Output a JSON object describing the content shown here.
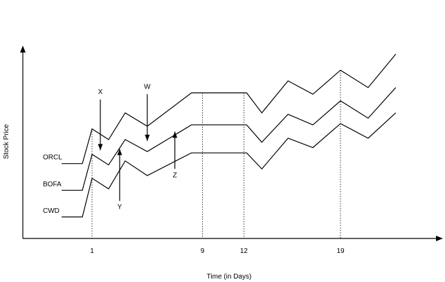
{
  "chart_data": {
    "type": "line",
    "xlabel": "Time (in Days)",
    "ylabel": "Stock Price",
    "x_ticks": [
      1,
      9,
      12,
      19
    ],
    "ylim": [
      0,
      100
    ],
    "series": [
      {
        "name": "ORCL",
        "points": [
          [
            -1.2,
            38
          ],
          [
            0.3,
            38
          ],
          [
            1.0,
            64
          ],
          [
            2.2,
            56
          ],
          [
            3.4,
            76
          ],
          [
            5.0,
            66
          ],
          [
            8.2,
            91
          ],
          [
            9.2,
            91
          ],
          [
            12.2,
            91
          ],
          [
            13.3,
            76
          ],
          [
            15.2,
            100
          ],
          [
            17.0,
            90
          ],
          [
            19.0,
            108
          ],
          [
            21.0,
            95
          ],
          [
            23.0,
            120
          ]
        ]
      },
      {
        "name": "BOFA",
        "points": [
          [
            -1.2,
            18
          ],
          [
            0.3,
            18
          ],
          [
            1.0,
            45
          ],
          [
            2.2,
            37
          ],
          [
            3.4,
            56
          ],
          [
            5.0,
            47
          ],
          [
            8.2,
            67
          ],
          [
            9.2,
            67
          ],
          [
            12.2,
            67
          ],
          [
            13.3,
            54
          ],
          [
            15.2,
            75
          ],
          [
            17.0,
            67
          ],
          [
            19.0,
            85
          ],
          [
            21.0,
            72
          ],
          [
            23.0,
            95
          ]
        ]
      },
      {
        "name": "CWD",
        "points": [
          [
            -1.2,
            -2
          ],
          [
            0.3,
            -2
          ],
          [
            1.0,
            27
          ],
          [
            2.2,
            19
          ],
          [
            3.4,
            40
          ],
          [
            5.0,
            29
          ],
          [
            8.2,
            46
          ],
          [
            9.2,
            46
          ],
          [
            12.2,
            46
          ],
          [
            13.3,
            34
          ],
          [
            15.2,
            57
          ],
          [
            17.0,
            50
          ],
          [
            19.0,
            68
          ],
          [
            21.0,
            57
          ],
          [
            23.0,
            76
          ]
        ]
      }
    ],
    "annotations": [
      {
        "label": "X",
        "x": 1.6,
        "from": 86,
        "to": 48,
        "label_pos": "top"
      },
      {
        "label": "Y",
        "x": 3.0,
        "from": 10,
        "to": 49,
        "label_pos": "bottom"
      },
      {
        "label": "W",
        "x": 5.0,
        "from": 90,
        "to": 55,
        "label_pos": "top"
      },
      {
        "label": "Z",
        "x": 7.0,
        "from": 34,
        "to": 62,
        "label_pos": "bottom"
      }
    ],
    "reference_lines": [
      1,
      9,
      12,
      19
    ],
    "legend": "inline-left"
  }
}
